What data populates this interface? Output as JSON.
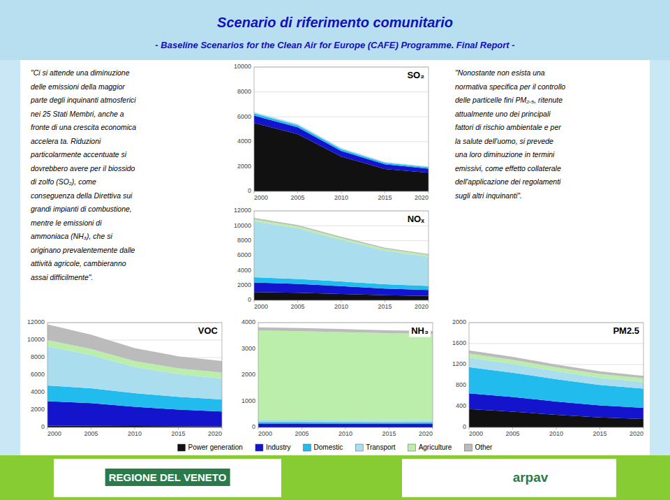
{
  "title": "Scenario di riferimento comunitario",
  "subtitle": "- Baseline Scenarios for the Clean Air for Europe (CAFE) Programme. Final Report -",
  "annotations": [
    "\"Ci si attende una diminuzione\ndelle emissioni della maggior\nparte degli inquinanti atmosferici\nnei 25 Stati Membri, anche a\nfronte di una crescita economica\naccelera ta. Riduzioni\nparticolarmente accentuate si\ndovrebbero avere per il biossido\ndi zolfo (SO₂), come\nconseguenza della Direttiva sui\ngrandi impianti di combustione,\nmentre le emissioni di\nammoniaca (NH₃), che si\noriginano prevalentemente dalle\nattività agricole, cambieranno\nassai difficilmente\".",
    "\"Nonostante non esista una\nnormativa specifica per il controllo\ndelle particelle fini PM₂.₅, ritenute\nattualmente uno dei principali\nfattori di rischio ambientale e per\nla salute dell'uomo, si prevede\nuna loro diminuzione in termini\nemissivi, come effetto collaterale\ndell'applicazione dei regolamenti\nsugli altri inquinanti\".",
    "REGIONE DEL VENETO",
    "arpav"
  ],
  "chart_data": [
    {
      "type": "area",
      "stacked": true,
      "grid": true,
      "title": "SO₂",
      "x": [
        2000,
        2005,
        2010,
        2015,
        2020
      ],
      "xlim": [
        2000,
        2020
      ],
      "xticks": [
        2000,
        2005,
        2010,
        2015,
        2020
      ],
      "ylim": [
        0,
        10000
      ],
      "yticks": [
        0,
        2000,
        4000,
        6000,
        8000,
        10000
      ],
      "series": [
        {
          "name": "Power generation",
          "color": "#111111",
          "values": [
            5500,
            4600,
            2800,
            1800,
            1500
          ]
        },
        {
          "name": "Industry",
          "color": "#1414CC",
          "values": [
            600,
            560,
            450,
            370,
            320
          ]
        },
        {
          "name": "Domestic",
          "color": "#22BBEE",
          "values": [
            180,
            165,
            148,
            132,
            120
          ]
        },
        {
          "name": "Transport",
          "color": "#AADDEE",
          "values": [
            70,
            62,
            54,
            48,
            44
          ]
        },
        {
          "name": "Agriculture",
          "color": "#BBEEAA",
          "values": [
            8,
            8,
            8,
            8,
            8
          ]
        },
        {
          "name": "Other",
          "color": "#BBBBBB",
          "values": [
            25,
            22,
            18,
            16,
            14
          ]
        }
      ]
    },
    {
      "type": "area",
      "stacked": true,
      "grid": true,
      "title": "NOₓ",
      "x": [
        2000,
        2005,
        2010,
        2015,
        2020
      ],
      "xlim": [
        2000,
        2020
      ],
      "xticks": [
        2000,
        2005,
        2010,
        2015,
        2020
      ],
      "ylim": [
        0,
        12000
      ],
      "yticks": [
        0,
        2000,
        4000,
        6000,
        8000,
        10000,
        12000
      ],
      "series": [
        {
          "name": "Power generation",
          "color": "#111111",
          "values": [
            1100,
            1000,
            850,
            680,
            580
          ]
        },
        {
          "name": "Industry",
          "color": "#1414CC",
          "values": [
            1300,
            1200,
            1050,
            900,
            800
          ]
        },
        {
          "name": "Domestic",
          "color": "#22BBEE",
          "values": [
            700,
            660,
            620,
            580,
            550
          ]
        },
        {
          "name": "Transport",
          "color": "#AADDEE",
          "values": [
            7500,
            6800,
            5600,
            4500,
            3900
          ]
        },
        {
          "name": "Agriculture",
          "color": "#BBEEAA",
          "values": [
            280,
            272,
            258,
            248,
            240
          ]
        },
        {
          "name": "Other",
          "color": "#BBBBBB",
          "values": [
            180,
            172,
            162,
            154,
            148
          ]
        }
      ]
    },
    {
      "type": "area",
      "stacked": true,
      "grid": true,
      "title": "VOC",
      "x": [
        2000,
        2005,
        2010,
        2015,
        2020
      ],
      "xlim": [
        2000,
        2020
      ],
      "xticks": [
        2000,
        2005,
        2010,
        2015,
        2020
      ],
      "ylim": [
        0,
        12000
      ],
      "yticks": [
        0,
        2000,
        4000,
        6000,
        8000,
        10000,
        12000
      ],
      "series": [
        {
          "name": "Power generation",
          "color": "#111111",
          "values": [
            200,
            185,
            165,
            145,
            130
          ]
        },
        {
          "name": "Industry",
          "color": "#1414CC",
          "values": [
            2800,
            2600,
            2200,
            1900,
            1700
          ]
        },
        {
          "name": "Domestic",
          "color": "#22BBEE",
          "values": [
            1800,
            1700,
            1550,
            1450,
            1380
          ]
        },
        {
          "name": "Transport",
          "color": "#AADDEE",
          "values": [
            4500,
            3800,
            3000,
            2600,
            2400
          ]
        },
        {
          "name": "Agriculture",
          "color": "#BBEEAA",
          "values": [
            700,
            692,
            680,
            672,
            665
          ]
        },
        {
          "name": "Other",
          "color": "#BBBBBB",
          "values": [
            1800,
            1650,
            1480,
            1380,
            1320
          ]
        }
      ]
    },
    {
      "type": "area",
      "stacked": true,
      "grid": true,
      "title": "NH₃",
      "x": [
        2000,
        2005,
        2010,
        2015,
        2020
      ],
      "xlim": [
        2000,
        2020
      ],
      "xticks": [
        2000,
        2005,
        2010,
        2015,
        2020
      ],
      "ylim": [
        0,
        4000
      ],
      "yticks": [
        0,
        1000,
        2000,
        3000,
        4000
      ],
      "series": [
        {
          "name": "Power generation",
          "color": "#111111",
          "values": [
            30,
            29,
            28,
            27,
            26
          ]
        },
        {
          "name": "Industry",
          "color": "#1414CC",
          "values": [
            120,
            118,
            115,
            112,
            110
          ]
        },
        {
          "name": "Domestic",
          "color": "#22BBEE",
          "values": [
            60,
            59,
            57,
            55,
            54
          ]
        },
        {
          "name": "Transport",
          "color": "#AADDEE",
          "values": [
            90,
            88,
            86,
            84,
            82
          ]
        },
        {
          "name": "Agriculture",
          "color": "#BBEEAA",
          "values": [
            3400,
            3380,
            3350,
            3320,
            3300
          ]
        },
        {
          "name": "Other",
          "color": "#BBBBBB",
          "values": [
            120,
            118,
            115,
            112,
            110
          ]
        }
      ]
    },
    {
      "type": "area",
      "stacked": true,
      "grid": true,
      "title": "PM2.5",
      "x": [
        2000,
        2005,
        2010,
        2015,
        2020
      ],
      "xlim": [
        2000,
        2020
      ],
      "xticks": [
        2000,
        2005,
        2010,
        2015,
        2020
      ],
      "ylim": [
        0,
        2000
      ],
      "yticks": [
        0,
        400,
        800,
        1200,
        1600,
        2000
      ],
      "series": [
        {
          "name": "Power generation",
          "color": "#111111",
          "values": [
            350,
            300,
            240,
            190,
            160
          ]
        },
        {
          "name": "Industry",
          "color": "#1414CC",
          "values": [
            300,
            280,
            255,
            230,
            215
          ]
        },
        {
          "name": "Domestic",
          "color": "#22BBEE",
          "values": [
            500,
            465,
            425,
            390,
            365
          ]
        },
        {
          "name": "Transport",
          "color": "#AADDEE",
          "values": [
            180,
            168,
            152,
            138,
            128
          ]
        },
        {
          "name": "Agriculture",
          "color": "#BBEEAA",
          "values": [
            80,
            78,
            75,
            72,
            70
          ]
        },
        {
          "name": "Other",
          "color": "#BBBBBB",
          "values": [
            60,
            57,
            53,
            50,
            47
          ]
        }
      ]
    }
  ]
}
